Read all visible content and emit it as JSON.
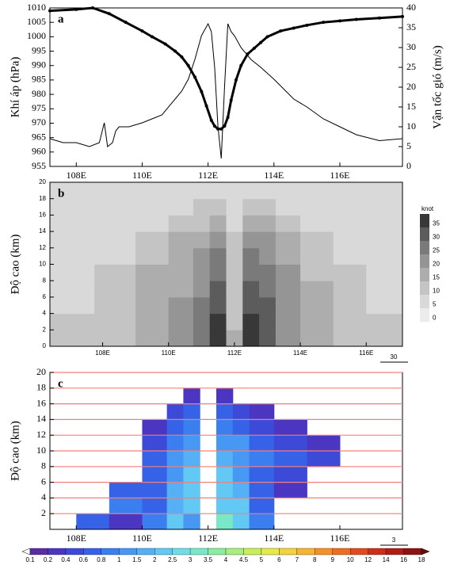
{
  "chart_data": [
    {
      "type": "line",
      "panel_label": "a",
      "xlim": [
        107.2,
        117.9
      ],
      "xticks": [
        {
          "value": 108,
          "label": "108E"
        },
        {
          "value": 110,
          "label": "110E"
        },
        {
          "value": 112,
          "label": "112E"
        },
        {
          "value": 114,
          "label": "114E"
        },
        {
          "value": 116,
          "label": "116E"
        }
      ],
      "ylim": [
        955,
        1010
      ],
      "yticks": [
        955,
        960,
        965,
        970,
        975,
        980,
        985,
        990,
        995,
        1000,
        1005,
        1010
      ],
      "y2lim": [
        0,
        40
      ],
      "y2ticks": [
        0,
        5,
        10,
        15,
        20,
        25,
        30,
        35,
        40
      ],
      "y_label": "Khí áp (hPa)",
      "y2_label": "Vận tốc gió (m/s)",
      "series": [
        {
          "color": "#000000",
          "line_width": 3,
          "marker": true,
          "x": [
            107.2,
            108.0,
            108.5,
            109.0,
            109.5,
            110.0,
            110.3,
            110.7,
            111.0,
            111.2,
            111.4,
            111.6,
            111.8,
            111.95,
            112.1,
            112.2,
            112.3,
            112.4,
            112.5,
            112.6,
            112.7,
            112.85,
            113.0,
            113.2,
            113.4,
            113.6,
            113.8,
            114.2,
            114.6,
            115.0,
            115.5,
            116.0,
            116.5,
            117.2,
            117.9
          ],
          "values": [
            1009,
            1009.5,
            1010,
            1008,
            1005,
            1002,
            1000,
            997.5,
            995,
            993,
            990,
            986,
            981,
            976,
            971,
            969,
            968,
            968,
            969,
            972,
            978,
            985,
            990,
            994,
            996,
            998,
            1000,
            1002,
            1003,
            1004,
            1005,
            1005.5,
            1006,
            1006.5,
            1007
          ]
        },
        {
          "color": "#000000",
          "line_width": 1,
          "marker": false,
          "axis": "y2",
          "x": [
            107.2,
            107.6,
            108.0,
            108.4,
            108.7,
            108.85,
            108.95,
            109.1,
            109.2,
            109.3,
            109.6,
            110.0,
            110.3,
            110.6,
            111.0,
            111.2,
            111.4,
            111.6,
            111.8,
            112.0,
            112.1,
            112.2,
            112.3,
            112.4,
            112.5,
            112.6,
            112.7,
            112.8,
            113.0,
            113.3,
            113.6,
            114.0,
            114.6,
            115.0,
            115.5,
            116.0,
            116.5,
            117.2,
            117.9
          ],
          "values": [
            7,
            6,
            6,
            5,
            6,
            11,
            5,
            6,
            9,
            10,
            10,
            11,
            12,
            13,
            17,
            19,
            22,
            27,
            33,
            36,
            34,
            25,
            10,
            2,
            20,
            36,
            34,
            33,
            30,
            27,
            25,
            22,
            17,
            15,
            12,
            10,
            8,
            6.5,
            7
          ]
        }
      ]
    },
    {
      "type": "heatmap",
      "panel_label": "b",
      "xlim": [
        106.4,
        117.1
      ],
      "xticks": [
        {
          "value": 108,
          "label": "108E"
        },
        {
          "value": 110,
          "label": "110E"
        },
        {
          "value": 112,
          "label": "112E"
        },
        {
          "value": 114,
          "label": "114E"
        },
        {
          "value": 116,
          "label": "116E"
        }
      ],
      "ylim": [
        0,
        20
      ],
      "yticks": [
        0,
        2,
        4,
        6,
        8,
        10,
        12,
        14,
        16,
        18,
        20
      ],
      "y_label": "Độ cao (km)",
      "x": [
        107.0,
        108.5,
        109.5,
        110.5,
        111,
        111.5,
        112,
        112.5,
        113,
        113.5,
        114.5,
        115.5,
        116.5,
        117.0
      ],
      "y": [
        1,
        3,
        5,
        7,
        9,
        11,
        13,
        15,
        17,
        19
      ],
      "values": [
        [
          10,
          10,
          15,
          20,
          25,
          35,
          15,
          35,
          30,
          20,
          15,
          10,
          10,
          10
        ],
        [
          10,
          10,
          15,
          20,
          25,
          35,
          10,
          35,
          30,
          20,
          15,
          10,
          10,
          10
        ],
        [
          5,
          10,
          15,
          20,
          25,
          30,
          10,
          30,
          30,
          20,
          15,
          10,
          5,
          5
        ],
        [
          5,
          10,
          15,
          15,
          20,
          30,
          10,
          30,
          25,
          20,
          15,
          10,
          5,
          5
        ],
        [
          5,
          10,
          15,
          15,
          20,
          25,
          10,
          25,
          25,
          20,
          10,
          10,
          5,
          5
        ],
        [
          5,
          5,
          10,
          15,
          20,
          25,
          10,
          25,
          20,
          15,
          10,
          5,
          5,
          5
        ],
        [
          5,
          5,
          10,
          15,
          15,
          20,
          10,
          20,
          20,
          15,
          10,
          5,
          5,
          5
        ],
        [
          5,
          5,
          5,
          10,
          10,
          15,
          5,
          15,
          15,
          10,
          5,
          5,
          5,
          5
        ],
        [
          5,
          5,
          5,
          5,
          10,
          10,
          5,
          10,
          10,
          5,
          5,
          5,
          5,
          5
        ],
        [
          5,
          5,
          5,
          5,
          5,
          5,
          5,
          5,
          5,
          5,
          5,
          5,
          5,
          5
        ]
      ],
      "colorbar": {
        "title": "knot",
        "levels": [
          0,
          5,
          10,
          15,
          20,
          25,
          30,
          35
        ],
        "colors": [
          "#ececec",
          "#d9d9d9",
          "#c4c4c4",
          "#adadad",
          "#959595",
          "#7a7a7a",
          "#5c5c5c",
          "#383838"
        ]
      },
      "reference_vector": 30
    },
    {
      "type": "heatmap",
      "panel_label": "c",
      "xlim": [
        107.2,
        117.9
      ],
      "xticks": [
        {
          "value": 108,
          "label": "108E"
        },
        {
          "value": 110,
          "label": "110E"
        },
        {
          "value": 112,
          "label": "112E"
        },
        {
          "value": 114,
          "label": "114E"
        },
        {
          "value": 116,
          "label": "116E"
        }
      ],
      "ylim": [
        0,
        20
      ],
      "yticks": [
        2,
        4,
        6,
        8,
        10,
        12,
        14,
        16,
        18,
        20
      ],
      "y_label": "Độ cao (km)",
      "grid": true,
      "grid_color": "#f08080",
      "x": [
        107.5,
        108.5,
        109.5,
        110.5,
        111,
        111.5,
        112,
        112.5,
        113,
        113.5,
        114.5,
        115.5,
        116.5,
        117.5
      ],
      "y": [
        1,
        3,
        5,
        7,
        9,
        11,
        13,
        15,
        17,
        19
      ],
      "values": [
        [
          0,
          0.6,
          0.2,
          0.8,
          2,
          1,
          0,
          3,
          2,
          0.8,
          0,
          0,
          0,
          0
        ],
        [
          0,
          0,
          0.8,
          0.6,
          1.5,
          2,
          0,
          2,
          2,
          0.6,
          0,
          0,
          0,
          0
        ],
        [
          0,
          0,
          0.6,
          0.6,
          1.5,
          2,
          0,
          2,
          1.5,
          0.6,
          0.2,
          0,
          0,
          0
        ],
        [
          0,
          0,
          0,
          0.6,
          1,
          2,
          0,
          2,
          1,
          0.6,
          0.4,
          0,
          0,
          0
        ],
        [
          0,
          0,
          0,
          0.6,
          1,
          1.5,
          0,
          1.5,
          1,
          0.8,
          0.6,
          0.4,
          0,
          0
        ],
        [
          0,
          0,
          0,
          0.4,
          0.8,
          1,
          0,
          1,
          1,
          0.6,
          0.4,
          0.2,
          0,
          0
        ],
        [
          0,
          0,
          0,
          0.2,
          0.6,
          0.8,
          0,
          0.8,
          0.6,
          0.4,
          0.2,
          0,
          0,
          0
        ],
        [
          0,
          0,
          0,
          0,
          0.4,
          0.6,
          0,
          0.6,
          0.4,
          0.2,
          0,
          0,
          0,
          0
        ],
        [
          0,
          0,
          0,
          0,
          0,
          0.2,
          0,
          0.2,
          0,
          0,
          0,
          0,
          0,
          0
        ],
        [
          0,
          0,
          0,
          0,
          0,
          0,
          0,
          0,
          0,
          0,
          0,
          0,
          0,
          0
        ]
      ],
      "colorbar": {
        "levels": [
          0.1,
          0.2,
          0.4,
          0.6,
          0.8,
          1,
          1.5,
          2,
          2.5,
          3,
          3.5,
          4,
          4.5,
          5,
          6,
          7,
          8,
          9,
          10,
          12,
          14,
          16,
          18
        ],
        "colors": [
          "#5a2ca6",
          "#4a36c0",
          "#3d4ad8",
          "#3562e6",
          "#3a7eef",
          "#4698f2",
          "#55b0f5",
          "#62c8f4",
          "#6edde6",
          "#78e8c6",
          "#8cec9f",
          "#a8ee7c",
          "#c8ee5c",
          "#e6ea48",
          "#f4d23c",
          "#f6b432",
          "#f4902a",
          "#ee6c24",
          "#e24a1e",
          "#cc2e1a",
          "#b01c16",
          "#901212",
          "#700a0a"
        ]
      },
      "reference_vector": 3
    }
  ]
}
